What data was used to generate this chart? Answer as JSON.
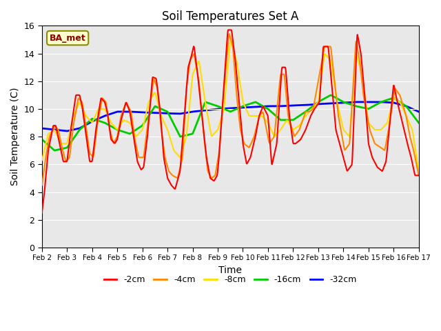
{
  "title": "Soil Temperatures Set A",
  "xlabel": "Time",
  "ylabel": "Soil Temperature (C)",
  "ylim": [
    0,
    16
  ],
  "yticks": [
    0,
    2,
    4,
    6,
    8,
    10,
    12,
    14,
    16
  ],
  "annotation": "BA_met",
  "bg_color": "#e8e8e8",
  "line_colors": {
    "-2cm": "#ff0000",
    "-4cm": "#ff8800",
    "-8cm": "#ffdd00",
    "-16cm": "#00cc00",
    "-32cm": "#0000ff"
  },
  "line_widths": {
    "-2cm": 1.5,
    "-4cm": 1.5,
    "-8cm": 1.5,
    "-16cm": 2.0,
    "-32cm": 2.0
  },
  "xtick_labels": [
    "Feb 2",
    "Feb 3",
    "Feb 4",
    "Feb 5",
    "Feb 6",
    "Feb 7",
    "Feb 8",
    "Feb 9",
    "Feb 10",
    "Feb 11",
    "Feb 12",
    "Feb 13",
    "Feb 14",
    "Feb 15",
    "Feb 16",
    "Feb 17"
  ],
  "xtick_positions": [
    2,
    3,
    4,
    5,
    6,
    7,
    8,
    9,
    10,
    11,
    12,
    13,
    14,
    15,
    16,
    17
  ],
  "figsize": [
    6.4,
    4.8
  ],
  "dpi": 100
}
